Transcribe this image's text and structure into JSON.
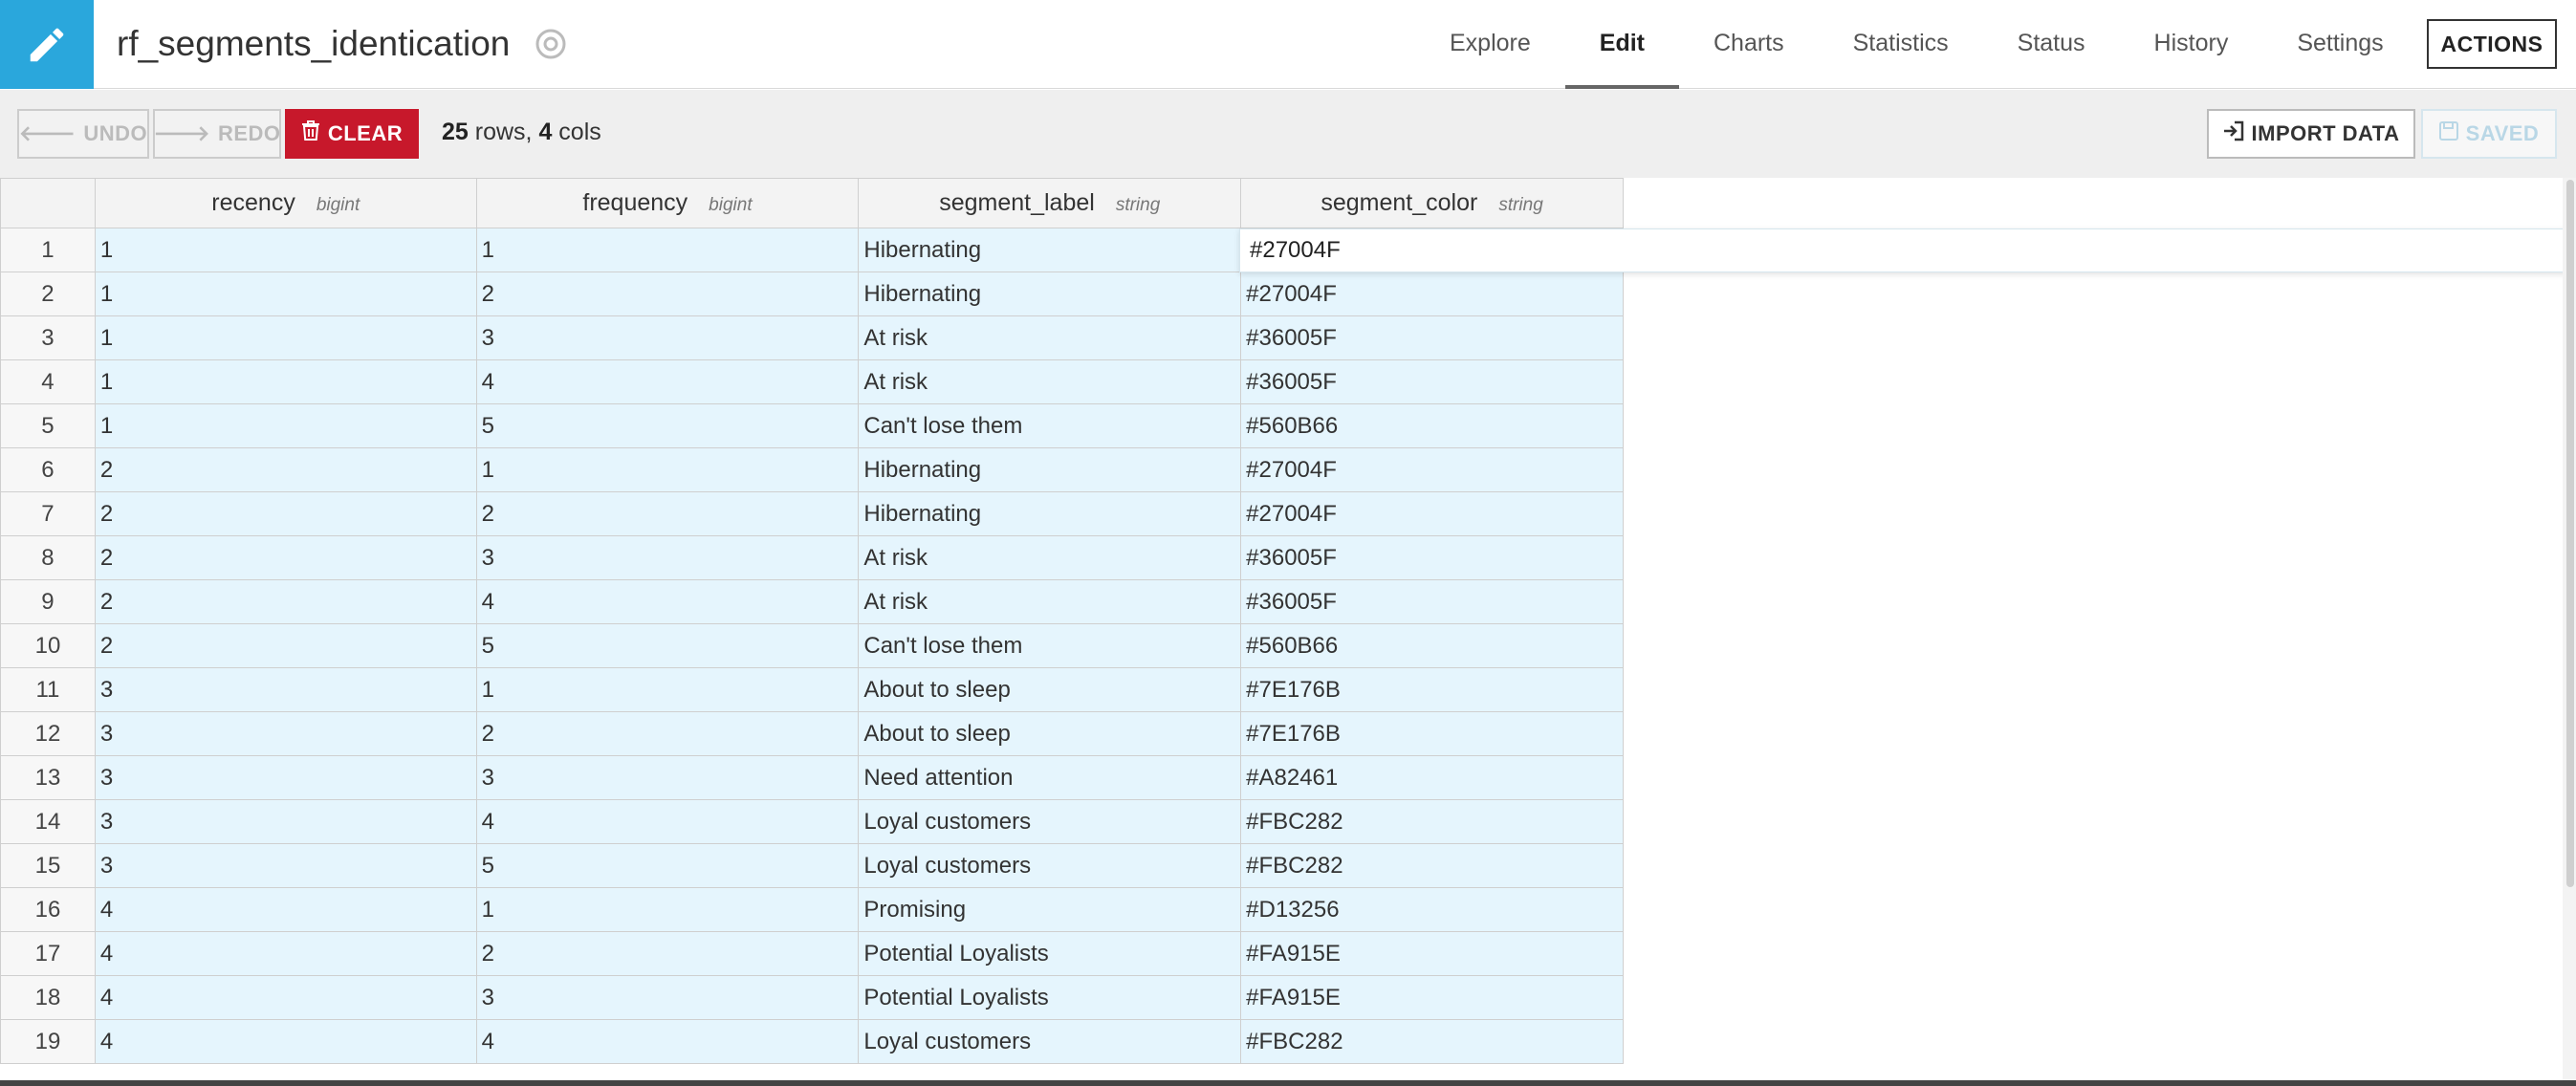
{
  "header": {
    "title": "rf_segments_identication",
    "tabs": [
      {
        "label": "Explore",
        "active": false
      },
      {
        "label": "Edit",
        "active": true
      },
      {
        "label": "Charts",
        "active": false
      },
      {
        "label": "Statistics",
        "active": false
      },
      {
        "label": "Status",
        "active": false
      },
      {
        "label": "History",
        "active": false
      },
      {
        "label": "Settings",
        "active": false
      }
    ],
    "actions_label": "ACTIONS",
    "icon": "pencil-icon",
    "accent_color": "#2aa7dc"
  },
  "toolbar": {
    "undo_label": "UNDO",
    "redo_label": "REDO",
    "clear_label": "CLEAR",
    "rows_count": "25",
    "rows_text": " rows, ",
    "cols_count": "4",
    "cols_text": " cols",
    "import_label": "IMPORT DATA",
    "saved_label": "SAVED",
    "clear_color": "#c7182b"
  },
  "grid": {
    "columns": [
      {
        "name": "recency",
        "type": "bigint"
      },
      {
        "name": "frequency",
        "type": "bigint"
      },
      {
        "name": "segment_label",
        "type": "string"
      },
      {
        "name": "segment_color",
        "type": "string"
      }
    ],
    "rows": [
      [
        "1",
        "1",
        "1",
        "Hibernating",
        "#27004F"
      ],
      [
        "2",
        "1",
        "2",
        "Hibernating",
        "#27004F"
      ],
      [
        "3",
        "1",
        "3",
        "At risk",
        "#36005F"
      ],
      [
        "4",
        "1",
        "4",
        "At risk",
        "#36005F"
      ],
      [
        "5",
        "1",
        "5",
        "Can't lose them",
        "#560B66"
      ],
      [
        "6",
        "2",
        "1",
        "Hibernating",
        "#27004F"
      ],
      [
        "7",
        "2",
        "2",
        "Hibernating",
        "#27004F"
      ],
      [
        "8",
        "2",
        "3",
        "At risk",
        "#36005F"
      ],
      [
        "9",
        "2",
        "4",
        "At risk",
        "#36005F"
      ],
      [
        "10",
        "2",
        "5",
        "Can't lose them",
        "#560B66"
      ],
      [
        "11",
        "3",
        "1",
        "About to sleep",
        "#7E176B"
      ],
      [
        "12",
        "3",
        "2",
        "About to sleep",
        "#7E176B"
      ],
      [
        "13",
        "3",
        "3",
        "Need attention",
        "#A82461"
      ],
      [
        "14",
        "3",
        "4",
        "Loyal customers",
        "#FBC282"
      ],
      [
        "15",
        "3",
        "5",
        "Loyal customers",
        "#FBC282"
      ],
      [
        "16",
        "4",
        "1",
        "Promising",
        "#D13256"
      ],
      [
        "17",
        "4",
        "2",
        "Potential Loyalists",
        "#FA915E"
      ],
      [
        "18",
        "4",
        "3",
        "Potential Loyalists",
        "#FA915E"
      ],
      [
        "19",
        "4",
        "4",
        "Loyal customers",
        "#FBC282"
      ]
    ],
    "editing_value": "#27004F"
  }
}
